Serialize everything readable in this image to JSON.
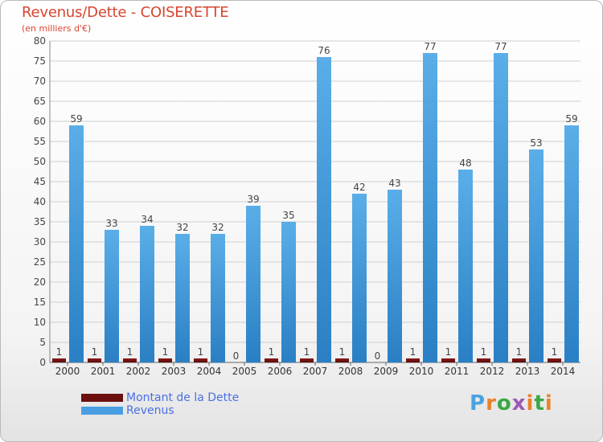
{
  "chart_data": {
    "type": "bar",
    "title": "Revenus/Dette - COISERETTE",
    "subtitle": "(en milliers d'€)",
    "categories": [
      "2000",
      "2001",
      "2002",
      "2003",
      "2004",
      "2005",
      "2006",
      "2007",
      "2008",
      "2009",
      "2010",
      "2011",
      "2012",
      "2013",
      "2014"
    ],
    "series": [
      {
        "name": "Montant de la Dette",
        "color": "#6b0f0f",
        "values": [
          1,
          1,
          1,
          1,
          1,
          0,
          1,
          1,
          1,
          0,
          1,
          1,
          1,
          1,
          1
        ]
      },
      {
        "name": "Revenus",
        "color": "#4a9fe3",
        "values": [
          59,
          33,
          34,
          32,
          32,
          39,
          35,
          76,
          42,
          43,
          77,
          48,
          77,
          53,
          59
        ]
      }
    ],
    "ylim": [
      0,
      80
    ],
    "yticks": [
      0,
      5,
      10,
      15,
      20,
      25,
      30,
      35,
      40,
      45,
      50,
      55,
      60,
      65,
      70,
      75,
      80
    ],
    "grid": true,
    "legend_position": "bottom-left"
  },
  "legend": {
    "debt_label": "Montant de la Dette",
    "revenue_label": "Revenus"
  },
  "branding": {
    "logo_text": "Proxiti",
    "colors": [
      "#4aa3df",
      "#e8832a",
      "#3aa845",
      "#9b59b6",
      "#e8832a",
      "#3aa845",
      "#e8832a"
    ]
  }
}
